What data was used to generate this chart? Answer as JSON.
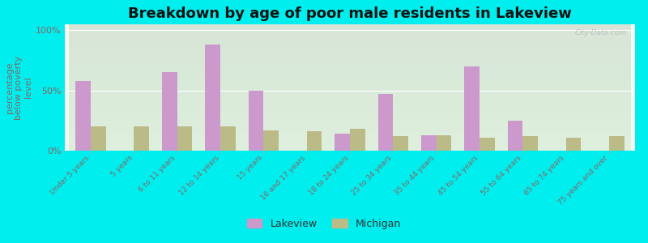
{
  "title": "Breakdown by age of poor male residents in Lakeview",
  "ylabel": "percentage\nbelow poverty\nlevel",
  "categories": [
    "Under 5 years",
    "5 years",
    "6 to 11 years",
    "12 to 14 years",
    "15 years",
    "16 and 17 years",
    "18 to 24 years",
    "25 to 34 years",
    "35 to 44 years",
    "45 to 54 years",
    "55 to 64 years",
    "65 to 74 years",
    "75 years and over"
  ],
  "lakeview_values": [
    58,
    0,
    65,
    88,
    50,
    0,
    14,
    47,
    13,
    70,
    25,
    0,
    0
  ],
  "michigan_values": [
    20,
    20,
    20,
    20,
    17,
    16,
    18,
    12,
    13,
    11,
    12,
    11,
    12
  ],
  "lakeview_color": "#cc99cc",
  "michigan_color": "#bbbb88",
  "outer_bg": "#00eeee",
  "plot_bg_top": "#e8f5e0",
  "plot_bg_bottom": "#f5faf0",
  "ylim": [
    0,
    105
  ],
  "yticks": [
    0,
    50,
    100
  ],
  "ytick_labels": [
    "0%",
    "50%",
    "100%"
  ],
  "title_fontsize": 13,
  "ylabel_fontsize": 8,
  "tick_label_color": "#886666",
  "legend_lakeview": "Lakeview",
  "legend_michigan": "Michigan",
  "bar_width": 0.35,
  "watermark": "City-Data.com"
}
